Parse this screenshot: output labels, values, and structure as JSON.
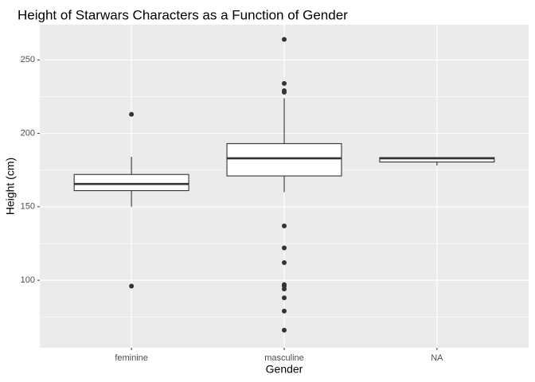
{
  "chart_data": {
    "type": "boxplot",
    "title": "Height of Starwars Characters as a Function of Gender",
    "xlabel": "Gender",
    "ylabel": "Height (cm)",
    "categories": [
      "feminine",
      "masculine",
      "NA"
    ],
    "ylim": [
      54,
      274
    ],
    "yticks": [
      100,
      150,
      200,
      250
    ],
    "ytick_labels": [
      "100",
      "150",
      "200",
      "250"
    ],
    "grid": true,
    "colors": {
      "panel": "#ebebeb",
      "grid_major": "#ffffff",
      "box_fill": "#ffffff",
      "box_stroke": "#333333",
      "outlier": "#333333"
    },
    "boxes": [
      {
        "category": "feminine",
        "whisker_low": 150,
        "q1": 161,
        "median": 165.5,
        "q3": 172,
        "whisker_high": 184,
        "outliers": [
          213,
          96
        ]
      },
      {
        "category": "masculine",
        "whisker_low": 160,
        "q1": 171,
        "median": 183,
        "q3": 193,
        "whisker_high": 224,
        "outliers": [
          264,
          234,
          229,
          228,
          137,
          122,
          112,
          97,
          96,
          94,
          88,
          79,
          66
        ]
      },
      {
        "category": "NA",
        "whisker_low": 178,
        "q1": 180.5,
        "median": 183,
        "q3": 183.5,
        "whisker_high": 183.5,
        "outliers": []
      }
    ]
  }
}
